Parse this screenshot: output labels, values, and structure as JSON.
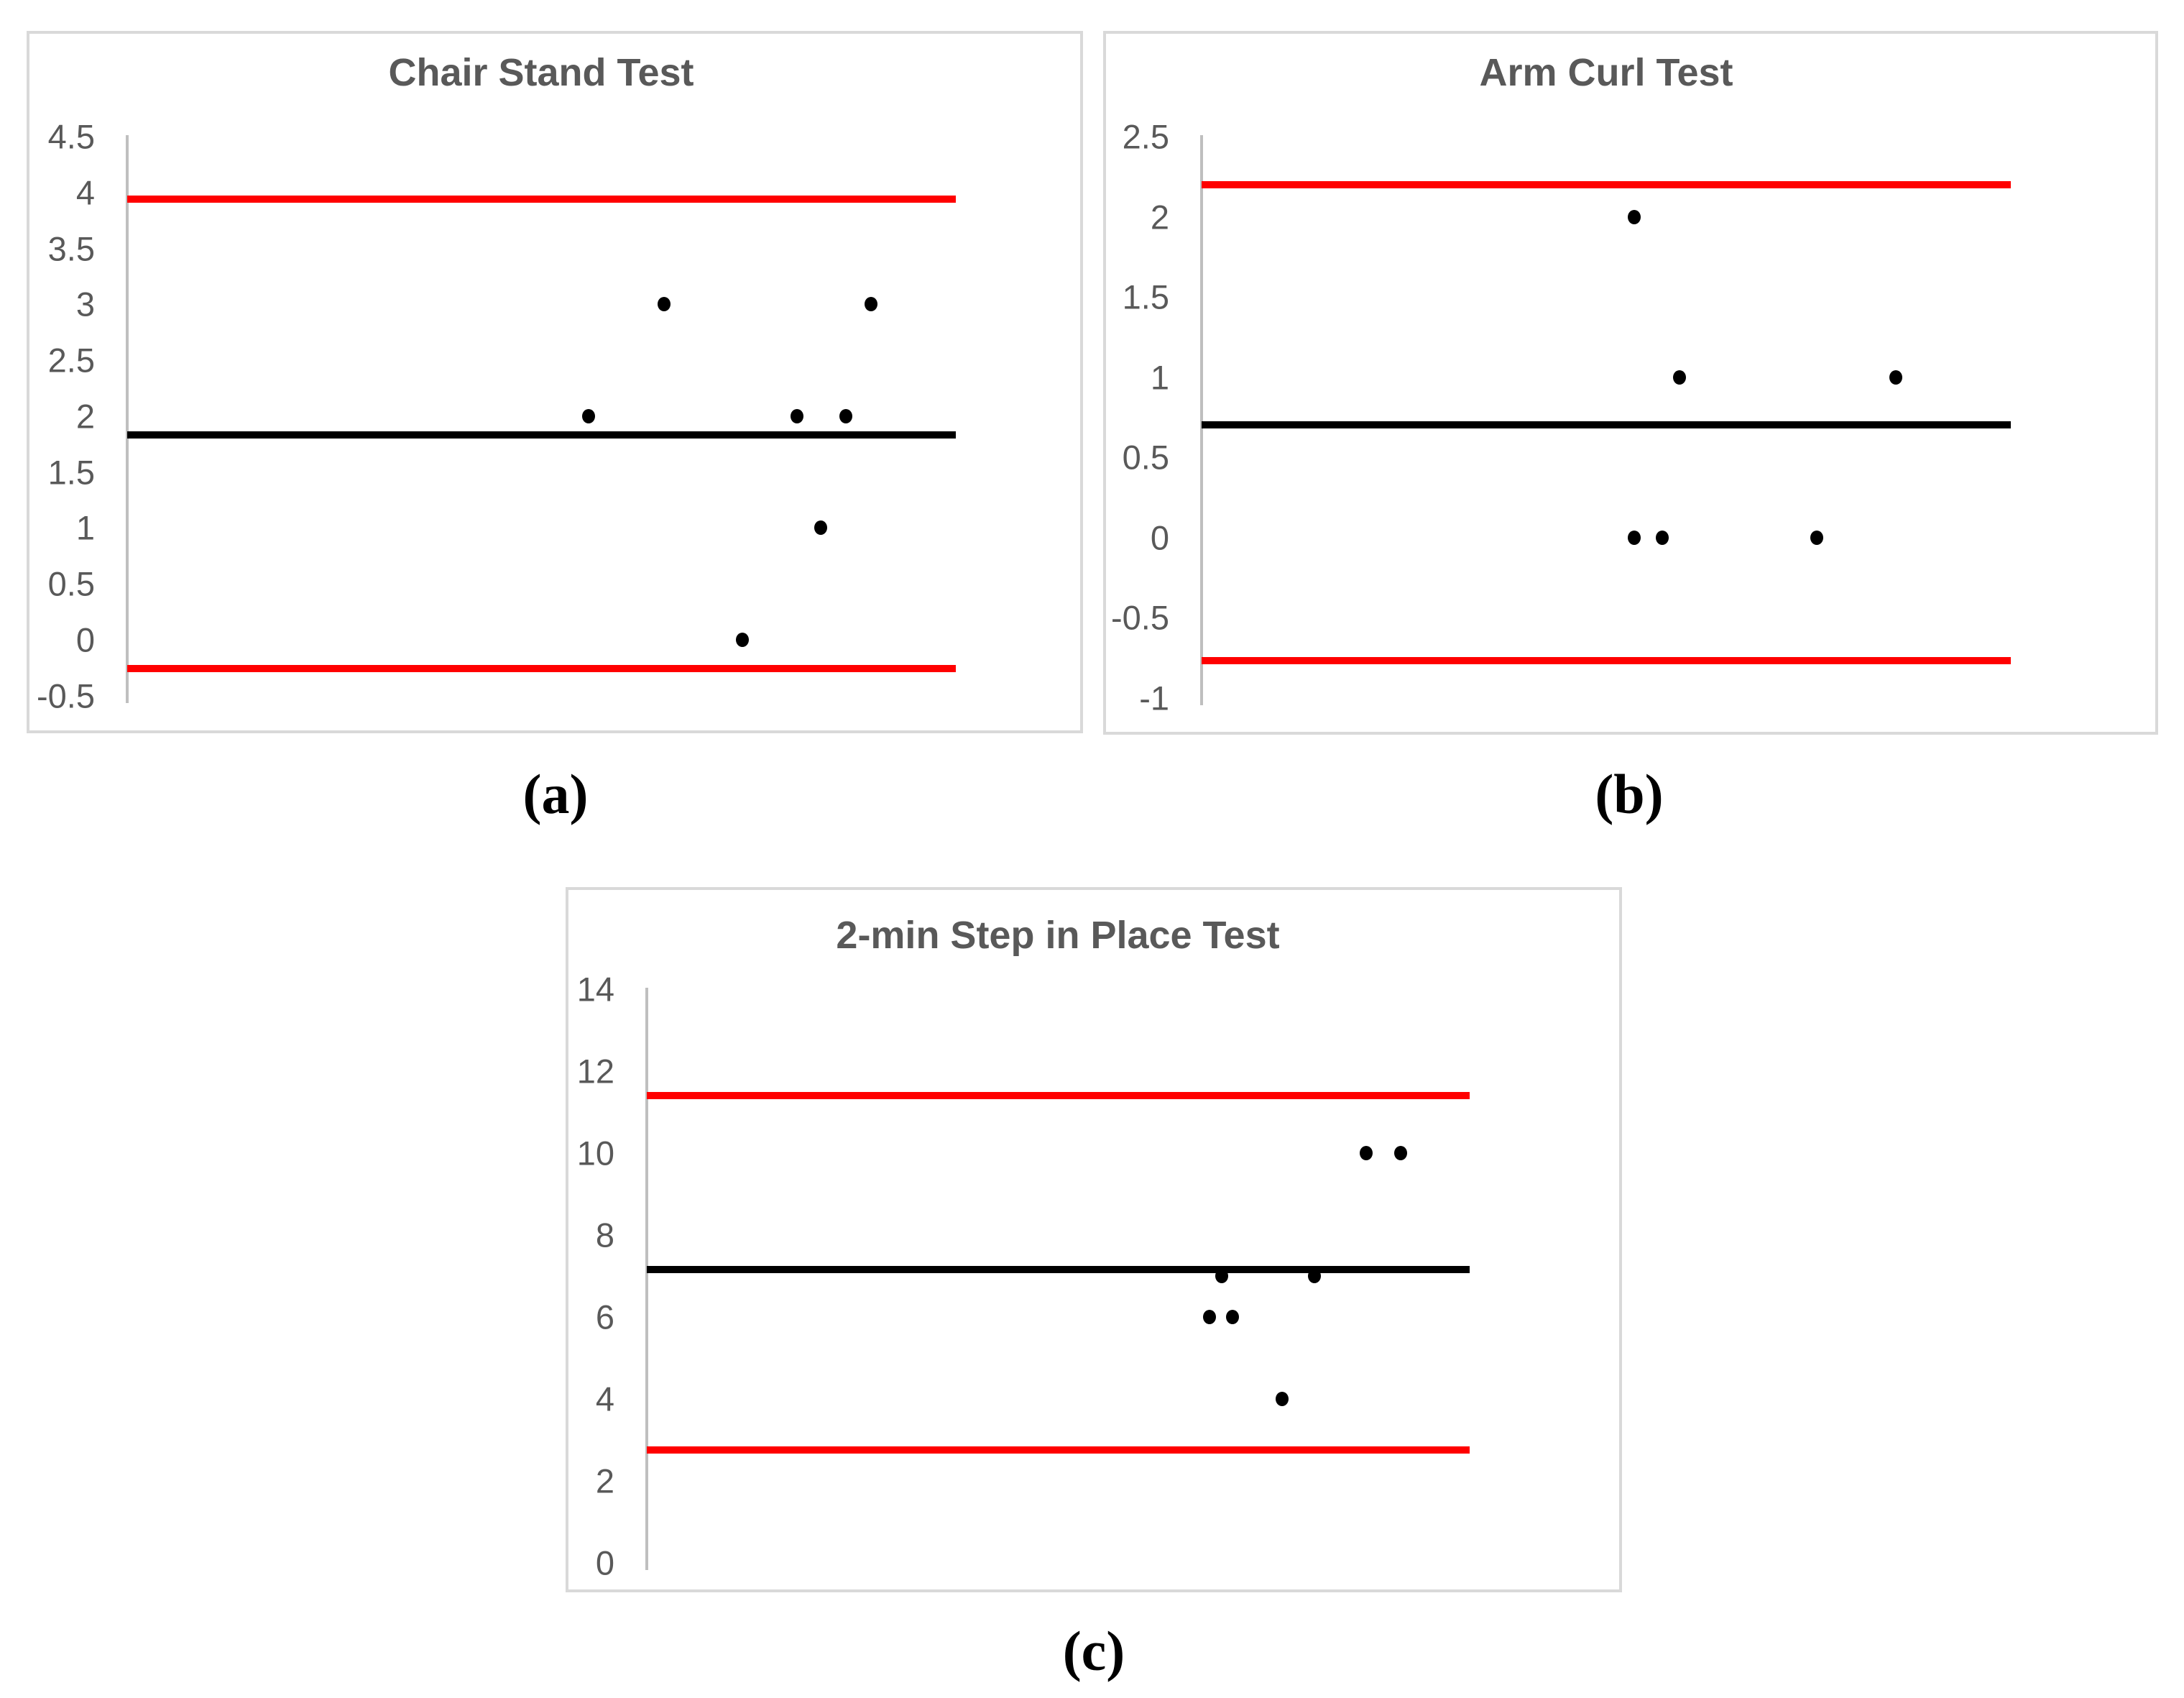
{
  "figure": {
    "background": "#FFFFFF",
    "border_color": "#D9D9D9",
    "axis_color": "#BFBFBF",
    "text_color": "#595959",
    "accent_red": "#FF0000",
    "accent_black": "#000000",
    "panel_labels": [
      "(a)",
      "(b)",
      "(c)"
    ]
  },
  "chart_data": [
    {
      "type": "scatter",
      "panel_label": "(a)",
      "title": "Chair Stand Test",
      "xlabel": "",
      "ylabel": "",
      "grid": false,
      "legend": null,
      "ylim": [
        -0.5,
        4.5
      ],
      "ytick_step": 0.5,
      "yticks": [
        {
          "label": "4.5",
          "value": 4.5
        },
        {
          "label": "4",
          "value": 4
        },
        {
          "label": "3.5",
          "value": 3.5
        },
        {
          "label": "3",
          "value": 3
        },
        {
          "label": "2.5",
          "value": 2.5
        },
        {
          "label": "2",
          "value": 2
        },
        {
          "label": "1.5",
          "value": 1.5
        },
        {
          "label": "1",
          "value": 1
        },
        {
          "label": "0.5",
          "value": 0.5
        },
        {
          "label": "0",
          "value": 0
        },
        {
          "label": "-0.5",
          "value": -0.5
        }
      ],
      "lines": {
        "upper_loa": {
          "value": 3.94,
          "color": "#FF0000"
        },
        "mean_bias": {
          "value": 1.83,
          "color": "#000000"
        },
        "lower_loa": {
          "value": -0.26,
          "color": "#FF0000"
        }
      },
      "points": {
        "color": "#000000",
        "coords": [
          {
            "x_frac": 0.648,
            "y": 3
          },
          {
            "x_frac": 0.898,
            "y": 3
          },
          {
            "x_frac": 0.557,
            "y": 2
          },
          {
            "x_frac": 0.808,
            "y": 2
          },
          {
            "x_frac": 0.867,
            "y": 2
          },
          {
            "x_frac": 0.837,
            "y": 1
          },
          {
            "x_frac": 0.742,
            "y": 0
          }
        ]
      }
    },
    {
      "type": "scatter",
      "panel_label": "(b)",
      "title": "Arm Curl Test",
      "xlabel": "",
      "ylabel": "",
      "grid": false,
      "legend": null,
      "ylim": [
        -1,
        2.5
      ],
      "ytick_step": 0.5,
      "yticks": [
        {
          "label": "2.5",
          "value": 2.5
        },
        {
          "label": "2",
          "value": 2
        },
        {
          "label": "1.5",
          "value": 1.5
        },
        {
          "label": "1",
          "value": 1
        },
        {
          "label": "0.5",
          "value": 0.5
        },
        {
          "label": "0",
          "value": 0
        },
        {
          "label": "-0.5",
          "value": -0.5
        },
        {
          "label": "-1",
          "value": -1
        }
      ],
      "lines": {
        "upper_loa": {
          "value": 2.2,
          "color": "#FF0000"
        },
        "mean_bias": {
          "value": 0.7,
          "color": "#000000"
        },
        "lower_loa": {
          "value": -0.77,
          "color": "#FF0000"
        }
      },
      "points": {
        "color": "#000000",
        "coords": [
          {
            "x_frac": 0.535,
            "y": 2
          },
          {
            "x_frac": 0.591,
            "y": 1
          },
          {
            "x_frac": 0.858,
            "y": 1
          },
          {
            "x_frac": 0.535,
            "y": 0
          },
          {
            "x_frac": 0.569,
            "y": 0
          },
          {
            "x_frac": 0.76,
            "y": 0
          }
        ]
      }
    },
    {
      "type": "scatter",
      "panel_label": "(c)",
      "title": "2-min Step in Place Test",
      "xlabel": "",
      "ylabel": "",
      "grid": false,
      "legend": null,
      "ylim": [
        0,
        14
      ],
      "ytick_step": 2,
      "yticks": [
        {
          "label": "14",
          "value": 14
        },
        {
          "label": "12",
          "value": 12
        },
        {
          "label": "10",
          "value": 10
        },
        {
          "label": "8",
          "value": 8
        },
        {
          "label": "6",
          "value": 6
        },
        {
          "label": "4",
          "value": 4
        },
        {
          "label": "2",
          "value": 2
        },
        {
          "label": "0",
          "value": 0
        }
      ],
      "lines": {
        "upper_loa": {
          "value": 11.4,
          "color": "#FF0000"
        },
        "mean_bias": {
          "value": 7.15,
          "color": "#000000"
        },
        "lower_loa": {
          "value": 2.75,
          "color": "#FF0000"
        }
      },
      "points": {
        "color": "#000000",
        "coords": [
          {
            "x_frac": 0.874,
            "y": 10
          },
          {
            "x_frac": 0.916,
            "y": 10
          },
          {
            "x_frac": 0.699,
            "y": 7
          },
          {
            "x_frac": 0.811,
            "y": 7
          },
          {
            "x_frac": 0.684,
            "y": 6
          },
          {
            "x_frac": 0.712,
            "y": 6
          },
          {
            "x_frac": 0.772,
            "y": 4
          }
        ]
      }
    }
  ]
}
